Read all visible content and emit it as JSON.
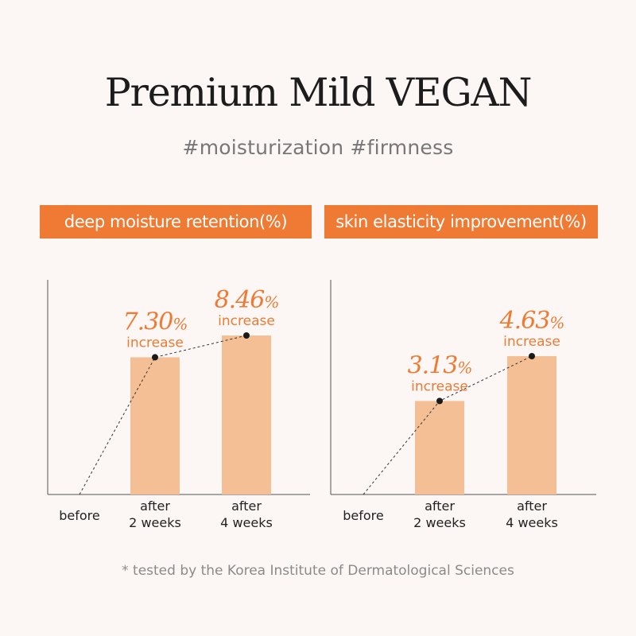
{
  "title": "Premium Mild VEGAN",
  "subtitle": "#moisturization #firmness",
  "footnote": "* tested by the Korea Institute of Dermatological Sciences",
  "colors": {
    "background": "#fcf7f4",
    "accent": "#ee7a33",
    "bar": "#f5bf95",
    "highlight_text": "#ee7a33"
  },
  "chart_data": [
    {
      "type": "bar",
      "title": "deep moisture retention(%)",
      "categories": [
        "before",
        "after\n2 weeks",
        "after\n4 weeks"
      ],
      "values": [
        0,
        7.3,
        8.46
      ],
      "annotations": [
        {
          "category": "after\n2 weeks",
          "value": "7.30%",
          "label": "increase"
        },
        {
          "category": "after\n4 weeks",
          "value": "8.46%",
          "label": "increase"
        }
      ],
      "trend_line": "dotted",
      "grid": false
    },
    {
      "type": "bar",
      "title": "skin elasticity improvement(%)",
      "categories": [
        "before",
        "after\n2 weeks",
        "after\n4 weeks"
      ],
      "values": [
        0,
        3.13,
        4.63
      ],
      "annotations": [
        {
          "category": "after\n2 weeks",
          "value": "3.13%",
          "label": "increase"
        },
        {
          "category": "after\n4 weeks",
          "value": "4.63%",
          "label": "increase"
        }
      ],
      "trend_line": "dotted",
      "grid": false
    }
  ]
}
